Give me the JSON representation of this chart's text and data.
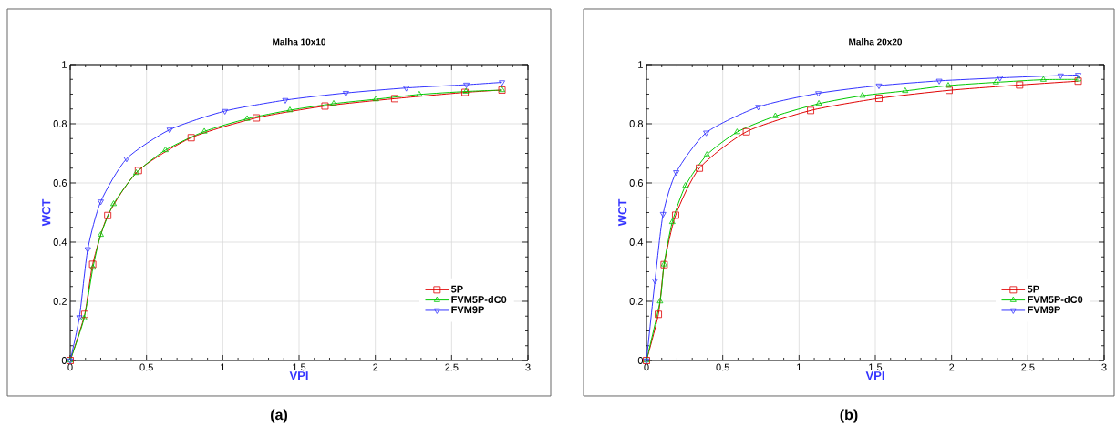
{
  "chart_data": [
    {
      "type": "line",
      "title": "Malha 10x10",
      "xlabel": "VPI",
      "ylabel": "WCT",
      "annotations": [
        "(a)"
      ],
      "xlim": [
        0,
        3
      ],
      "ylim": [
        0,
        1
      ],
      "xticks": [
        0,
        0.5,
        1,
        1.5,
        2,
        2.5,
        3
      ],
      "yticks": [
        0,
        0.2,
        0.4,
        0.6,
        0.8,
        1
      ],
      "grid": true,
      "legend": "bottom right",
      "line_style": "solid",
      "series": [
        {
          "name": "5P",
          "color": "#e00000",
          "marker": "square",
          "x": [
            0,
            0.095,
            0.147,
            0.246,
            0.447,
            0.793,
            1.22,
            1.67,
            2.127,
            2.588,
            2.83
          ],
          "values": [
            0,
            0.156,
            0.325,
            0.49,
            0.642,
            0.753,
            0.82,
            0.86,
            0.885,
            0.906,
            0.914
          ]
        },
        {
          "name": "FVM5P-dC0",
          "color": "#00c800",
          "marker": "triangle",
          "x": [
            0,
            0.091,
            0.149,
            0.2,
            0.284,
            0.433,
            0.624,
            0.879,
            1.16,
            1.44,
            1.727,
            2.004,
            2.288,
            2.594,
            2.83
          ],
          "values": [
            0,
            0.143,
            0.314,
            0.425,
            0.529,
            0.634,
            0.711,
            0.774,
            0.817,
            0.846,
            0.868,
            0.883,
            0.899,
            0.909,
            0.914
          ]
        },
        {
          "name": "FVM9P",
          "color": "#3333ff",
          "marker": "triangle-down",
          "x": [
            0,
            0.06,
            0.115,
            0.2,
            0.37,
            0.652,
            1.014,
            1.41,
            1.807,
            2.203,
            2.597,
            2.83
          ],
          "values": [
            0,
            0.146,
            0.376,
            0.537,
            0.682,
            0.78,
            0.843,
            0.88,
            0.904,
            0.921,
            0.932,
            0.94
          ]
        }
      ]
    },
    {
      "type": "line",
      "title": "Malha 20x20",
      "xlabel": "VPI",
      "ylabel": "WCT",
      "annotations": [
        "(b)"
      ],
      "xlim": [
        0,
        3
      ],
      "ylim": [
        0,
        1
      ],
      "xticks": [
        0,
        0.5,
        1,
        1.5,
        2,
        2.5,
        3
      ],
      "yticks": [
        0,
        0.2,
        0.4,
        0.6,
        0.8,
        1
      ],
      "grid": true,
      "legend": "bottom right",
      "line_style": "solid",
      "series": [
        {
          "name": "5P",
          "color": "#e00000",
          "marker": "square",
          "x": [
            0,
            0.078,
            0.116,
            0.191,
            0.347,
            0.655,
            1.076,
            1.524,
            1.984,
            2.446,
            2.83
          ],
          "values": [
            0,
            0.156,
            0.324,
            0.491,
            0.65,
            0.773,
            0.845,
            0.886,
            0.913,
            0.931,
            0.944
          ]
        },
        {
          "name": "FVM5P-dC0",
          "color": "#00c800",
          "marker": "triangle",
          "x": [
            0,
            0.089,
            0.115,
            0.169,
            0.256,
            0.396,
            0.594,
            0.845,
            1.13,
            1.416,
            1.696,
            1.978,
            2.291,
            2.602,
            2.83
          ],
          "values": [
            0,
            0.2,
            0.325,
            0.468,
            0.591,
            0.695,
            0.772,
            0.826,
            0.868,
            0.895,
            0.911,
            0.929,
            0.94,
            0.949,
            0.95
          ]
        },
        {
          "name": "FVM9P",
          "color": "#3333ff",
          "marker": "triangle-down",
          "x": [
            0,
            0.056,
            0.109,
            0.195,
            0.392,
            0.733,
            1.127,
            1.524,
            1.919,
            2.317,
            2.715,
            2.83
          ],
          "values": [
            0,
            0.27,
            0.495,
            0.636,
            0.77,
            0.857,
            0.903,
            0.929,
            0.945,
            0.955,
            0.963,
            0.965
          ]
        }
      ]
    }
  ]
}
